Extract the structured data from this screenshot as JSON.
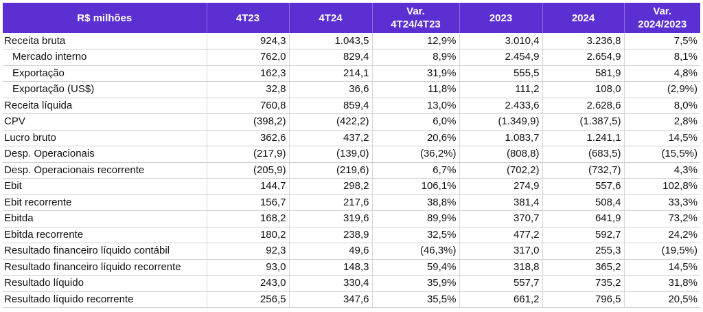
{
  "table": {
    "headers": [
      "R$ milhões",
      "4T23",
      "4T24",
      "Var.\n4T24/4T23",
      "2023",
      "2024",
      "Var.\n2024/2023"
    ],
    "header_color": "#5b2fd2",
    "rows": [
      {
        "label": "Receita bruta",
        "indent": false,
        "values": [
          "924,3",
          "1.043,5",
          "12,9%",
          "3.010,4",
          "3.236,8",
          "7,5%"
        ]
      },
      {
        "label": "Mercado interno",
        "indent": true,
        "values": [
          "762,0",
          "829,4",
          "8,9%",
          "2.454,9",
          "2.654,9",
          "8,1%"
        ]
      },
      {
        "label": "Exportação",
        "indent": true,
        "values": [
          "162,3",
          "214,1",
          "31,9%",
          "555,5",
          "581,9",
          "4,8%"
        ]
      },
      {
        "label": "Exportação (US$)",
        "indent": true,
        "values": [
          "32,8",
          "36,6",
          "11,8%",
          "111,2",
          "108,0",
          "(2,9%)"
        ]
      },
      {
        "label": "Receita líquida",
        "indent": false,
        "values": [
          "760,8",
          "859,4",
          "13,0%",
          "2.433,6",
          "2.628,6",
          "8,0%"
        ]
      },
      {
        "label": "CPV",
        "indent": false,
        "values": [
          "(398,2)",
          "(422,2)",
          "6,0%",
          "(1.349,9)",
          "(1.387,5)",
          "2,8%"
        ]
      },
      {
        "label": "Lucro bruto",
        "indent": false,
        "values": [
          "362,6",
          "437,2",
          "20,6%",
          "1.083,7",
          "1.241,1",
          "14,5%"
        ]
      },
      {
        "label": "Desp. Operacionais",
        "indent": false,
        "values": [
          "(217,9)",
          "(139,0)",
          "(36,2%)",
          "(808,8)",
          "(683,5)",
          "(15,5%)"
        ]
      },
      {
        "label": "Desp. Operacionais recorrente",
        "indent": false,
        "values": [
          "(205,9)",
          "(219,6)",
          "6,7%",
          "(702,2)",
          "(732,7)",
          "4,3%"
        ]
      },
      {
        "label": "Ebit",
        "indent": false,
        "values": [
          "144,7",
          "298,2",
          "106,1%",
          "274,9",
          "557,6",
          "102,8%"
        ]
      },
      {
        "label": "Ebit recorrente",
        "indent": false,
        "values": [
          "156,7",
          "217,6",
          "38,8%",
          "381,4",
          "508,4",
          "33,3%"
        ]
      },
      {
        "label": "Ebitda",
        "indent": false,
        "values": [
          "168,2",
          "319,6",
          "89,9%",
          "370,7",
          "641,9",
          "73,2%"
        ]
      },
      {
        "label": "Ebitda recorrente",
        "indent": false,
        "values": [
          "180,2",
          "238,9",
          "32,5%",
          "477,2",
          "592,7",
          "24,2%"
        ]
      },
      {
        "label": "Resultado financeiro líquido contábil",
        "indent": false,
        "values": [
          "92,3",
          "49,6",
          "(46,3%)",
          "317,0",
          "255,3",
          "(19,5%)"
        ]
      },
      {
        "label": "Resultado financeiro líquido recorrente",
        "indent": false,
        "values": [
          "93,0",
          "148,3",
          "59,4%",
          "318,8",
          "365,2",
          "14,5%"
        ]
      },
      {
        "label": "Resultado líquido",
        "indent": false,
        "values": [
          "243,0",
          "330,4",
          "35,9%",
          "557,7",
          "735,2",
          "31,8%"
        ]
      },
      {
        "label": "Resultado líquido recorrente",
        "indent": false,
        "values": [
          "256,5",
          "347,6",
          "35,5%",
          "661,2",
          "796,5",
          "20,5%"
        ]
      }
    ]
  }
}
